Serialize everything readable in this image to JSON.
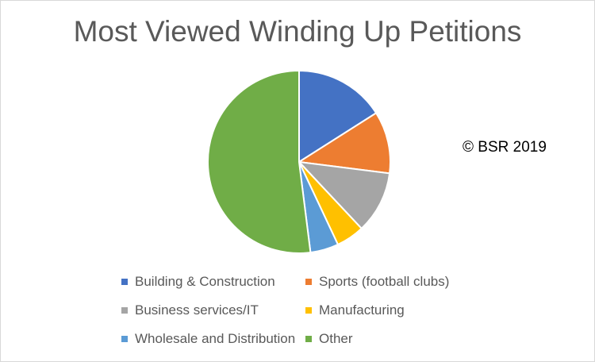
{
  "chart_data": {
    "type": "pie",
    "title": "Most Viewed Winding Up Petitions",
    "annotation": "© BSR 2019",
    "legend_position": "bottom",
    "slices": [
      {
        "label": "Building & Construction",
        "value": 16,
        "color": "#4472C4"
      },
      {
        "label": "Sports (football clubs)",
        "value": 11,
        "color": "#ED7D31"
      },
      {
        "label": "Business services/IT",
        "value": 11,
        "color": "#A5A5A5"
      },
      {
        "label": "Manufacturing",
        "value": 5,
        "color": "#FFC000"
      },
      {
        "label": "Wholesale and Distribution",
        "value": 5,
        "color": "#5B9BD5"
      },
      {
        "label": "Other",
        "value": 52,
        "color": "#70AD47"
      }
    ]
  }
}
